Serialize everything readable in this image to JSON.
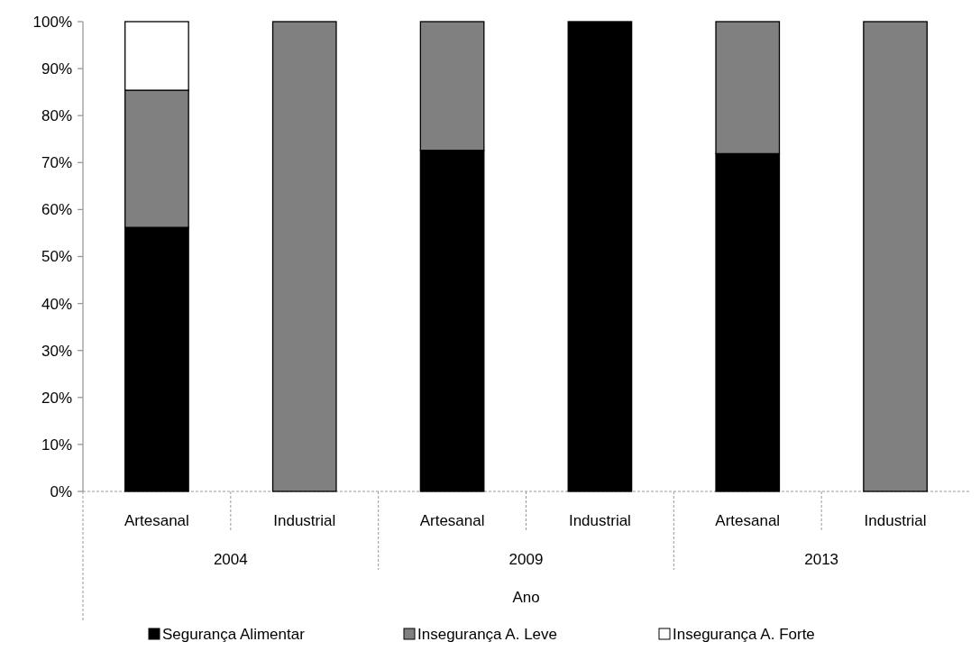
{
  "chart_data": {
    "type": "bar",
    "stacked": true,
    "categories": [
      "Artesanal",
      "Industrial",
      "Artesanal",
      "Industrial",
      "Artesanal",
      "Industrial"
    ],
    "annotations": [
      "2004",
      "2009",
      "2013"
    ],
    "xlabel": "Ano",
    "series": [
      {
        "name": "Segurança Alimentar",
        "color": "#000000",
        "values": [
          56.2,
          null,
          72.6,
          100,
          71.9,
          null
        ]
      },
      {
        "name": "Insegurança A. Leve",
        "color": "#808080",
        "values": [
          29.2,
          100,
          27.4,
          null,
          28.1,
          100
        ]
      },
      {
        "name": "Insegurança A. Forte",
        "color": "#ffffff",
        "values": [
          14.6,
          null,
          null,
          null,
          null,
          null
        ]
      }
    ],
    "ylim": [
      0,
      100
    ],
    "yticks": [
      {
        "value": 0,
        "label": "0%"
      },
      {
        "value": 10,
        "label": "10%"
      },
      {
        "value": 20,
        "label": "20%"
      },
      {
        "value": 30,
        "label": "30%"
      },
      {
        "value": 40,
        "label": "40%"
      },
      {
        "value": 50,
        "label": "50%"
      },
      {
        "value": 60,
        "label": "60%"
      },
      {
        "value": 70,
        "label": "70%"
      },
      {
        "value": 80,
        "label": "80%"
      },
      {
        "value": 90,
        "label": "90%"
      },
      {
        "value": 100,
        "label": "100%"
      }
    ],
    "legend": "bottom"
  }
}
